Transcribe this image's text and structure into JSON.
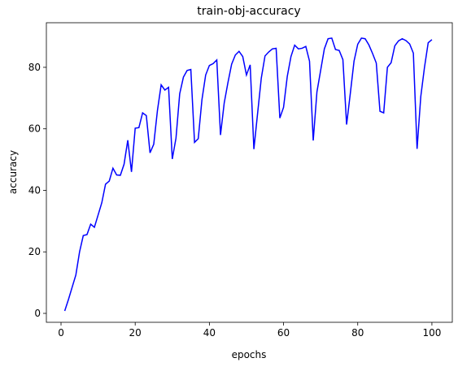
{
  "chart_data": {
    "type": "line",
    "title": "train-obj-accuracy",
    "x_label": "epochs",
    "y_label": "accuracy",
    "x": [
      1,
      2,
      3,
      4,
      5,
      6,
      7,
      8,
      9,
      10,
      11,
      12,
      13,
      14,
      15,
      16,
      17,
      18,
      19,
      20,
      21,
      22,
      23,
      24,
      25,
      26,
      27,
      28,
      29,
      30,
      31,
      32,
      33,
      34,
      35,
      36,
      37,
      38,
      39,
      40,
      41,
      42,
      43,
      44,
      45,
      46,
      47,
      48,
      49,
      50,
      51,
      52,
      53,
      54,
      55,
      56,
      57,
      58,
      59,
      60,
      61,
      62,
      63,
      64,
      65,
      66,
      67,
      68,
      69,
      70,
      71,
      72,
      73,
      74,
      75,
      76,
      77,
      78,
      79,
      80,
      81,
      82,
      83,
      84,
      85,
      86,
      87,
      88,
      89,
      90,
      91,
      92,
      93,
      94,
      95,
      96,
      97,
      98,
      99,
      100
    ],
    "series": [
      {
        "color": "#0000ff",
        "values": [
          0.8,
          4.5,
          8.5,
          12.5,
          20,
          25.3,
          25.6,
          29,
          28,
          32,
          36,
          42,
          43,
          47.2,
          45,
          44.9,
          48.5,
          56.3,
          46,
          60.2,
          60.4,
          65.2,
          64.3,
          52.2,
          55,
          66,
          74.3,
          72.6,
          73.5,
          50.2,
          57,
          71.4,
          76.8,
          79,
          79.3,
          55.6,
          56.8,
          69.5,
          77.5,
          80.6,
          81.2,
          82.4,
          58,
          68.4,
          75,
          81,
          84,
          85.2,
          83.5,
          77.5,
          80.8,
          53.4,
          65,
          76.5,
          83.7,
          85,
          86,
          86.2,
          63.5,
          67,
          77,
          83.5,
          87.2,
          86,
          86.2,
          86.8,
          82,
          56.2,
          72,
          79,
          86,
          89.3,
          89.5,
          85.8,
          85.5,
          82.5,
          61.4,
          71.5,
          82,
          87.5,
          89.5,
          89.3,
          87.3,
          84.5,
          81.4,
          65.7,
          65.2,
          80,
          81.5,
          87,
          88.6,
          89.3,
          88.7,
          87.6,
          84.6,
          53.5,
          70.5,
          80,
          88,
          89
        ]
      }
    ],
    "xlim": [
      -3.95,
      105.5
    ],
    "ylim": [
      -2.9,
      94.5
    ],
    "xticks": [
      0,
      20,
      40,
      60,
      80,
      100
    ],
    "yticks": [
      0,
      20,
      40,
      60,
      80
    ]
  }
}
